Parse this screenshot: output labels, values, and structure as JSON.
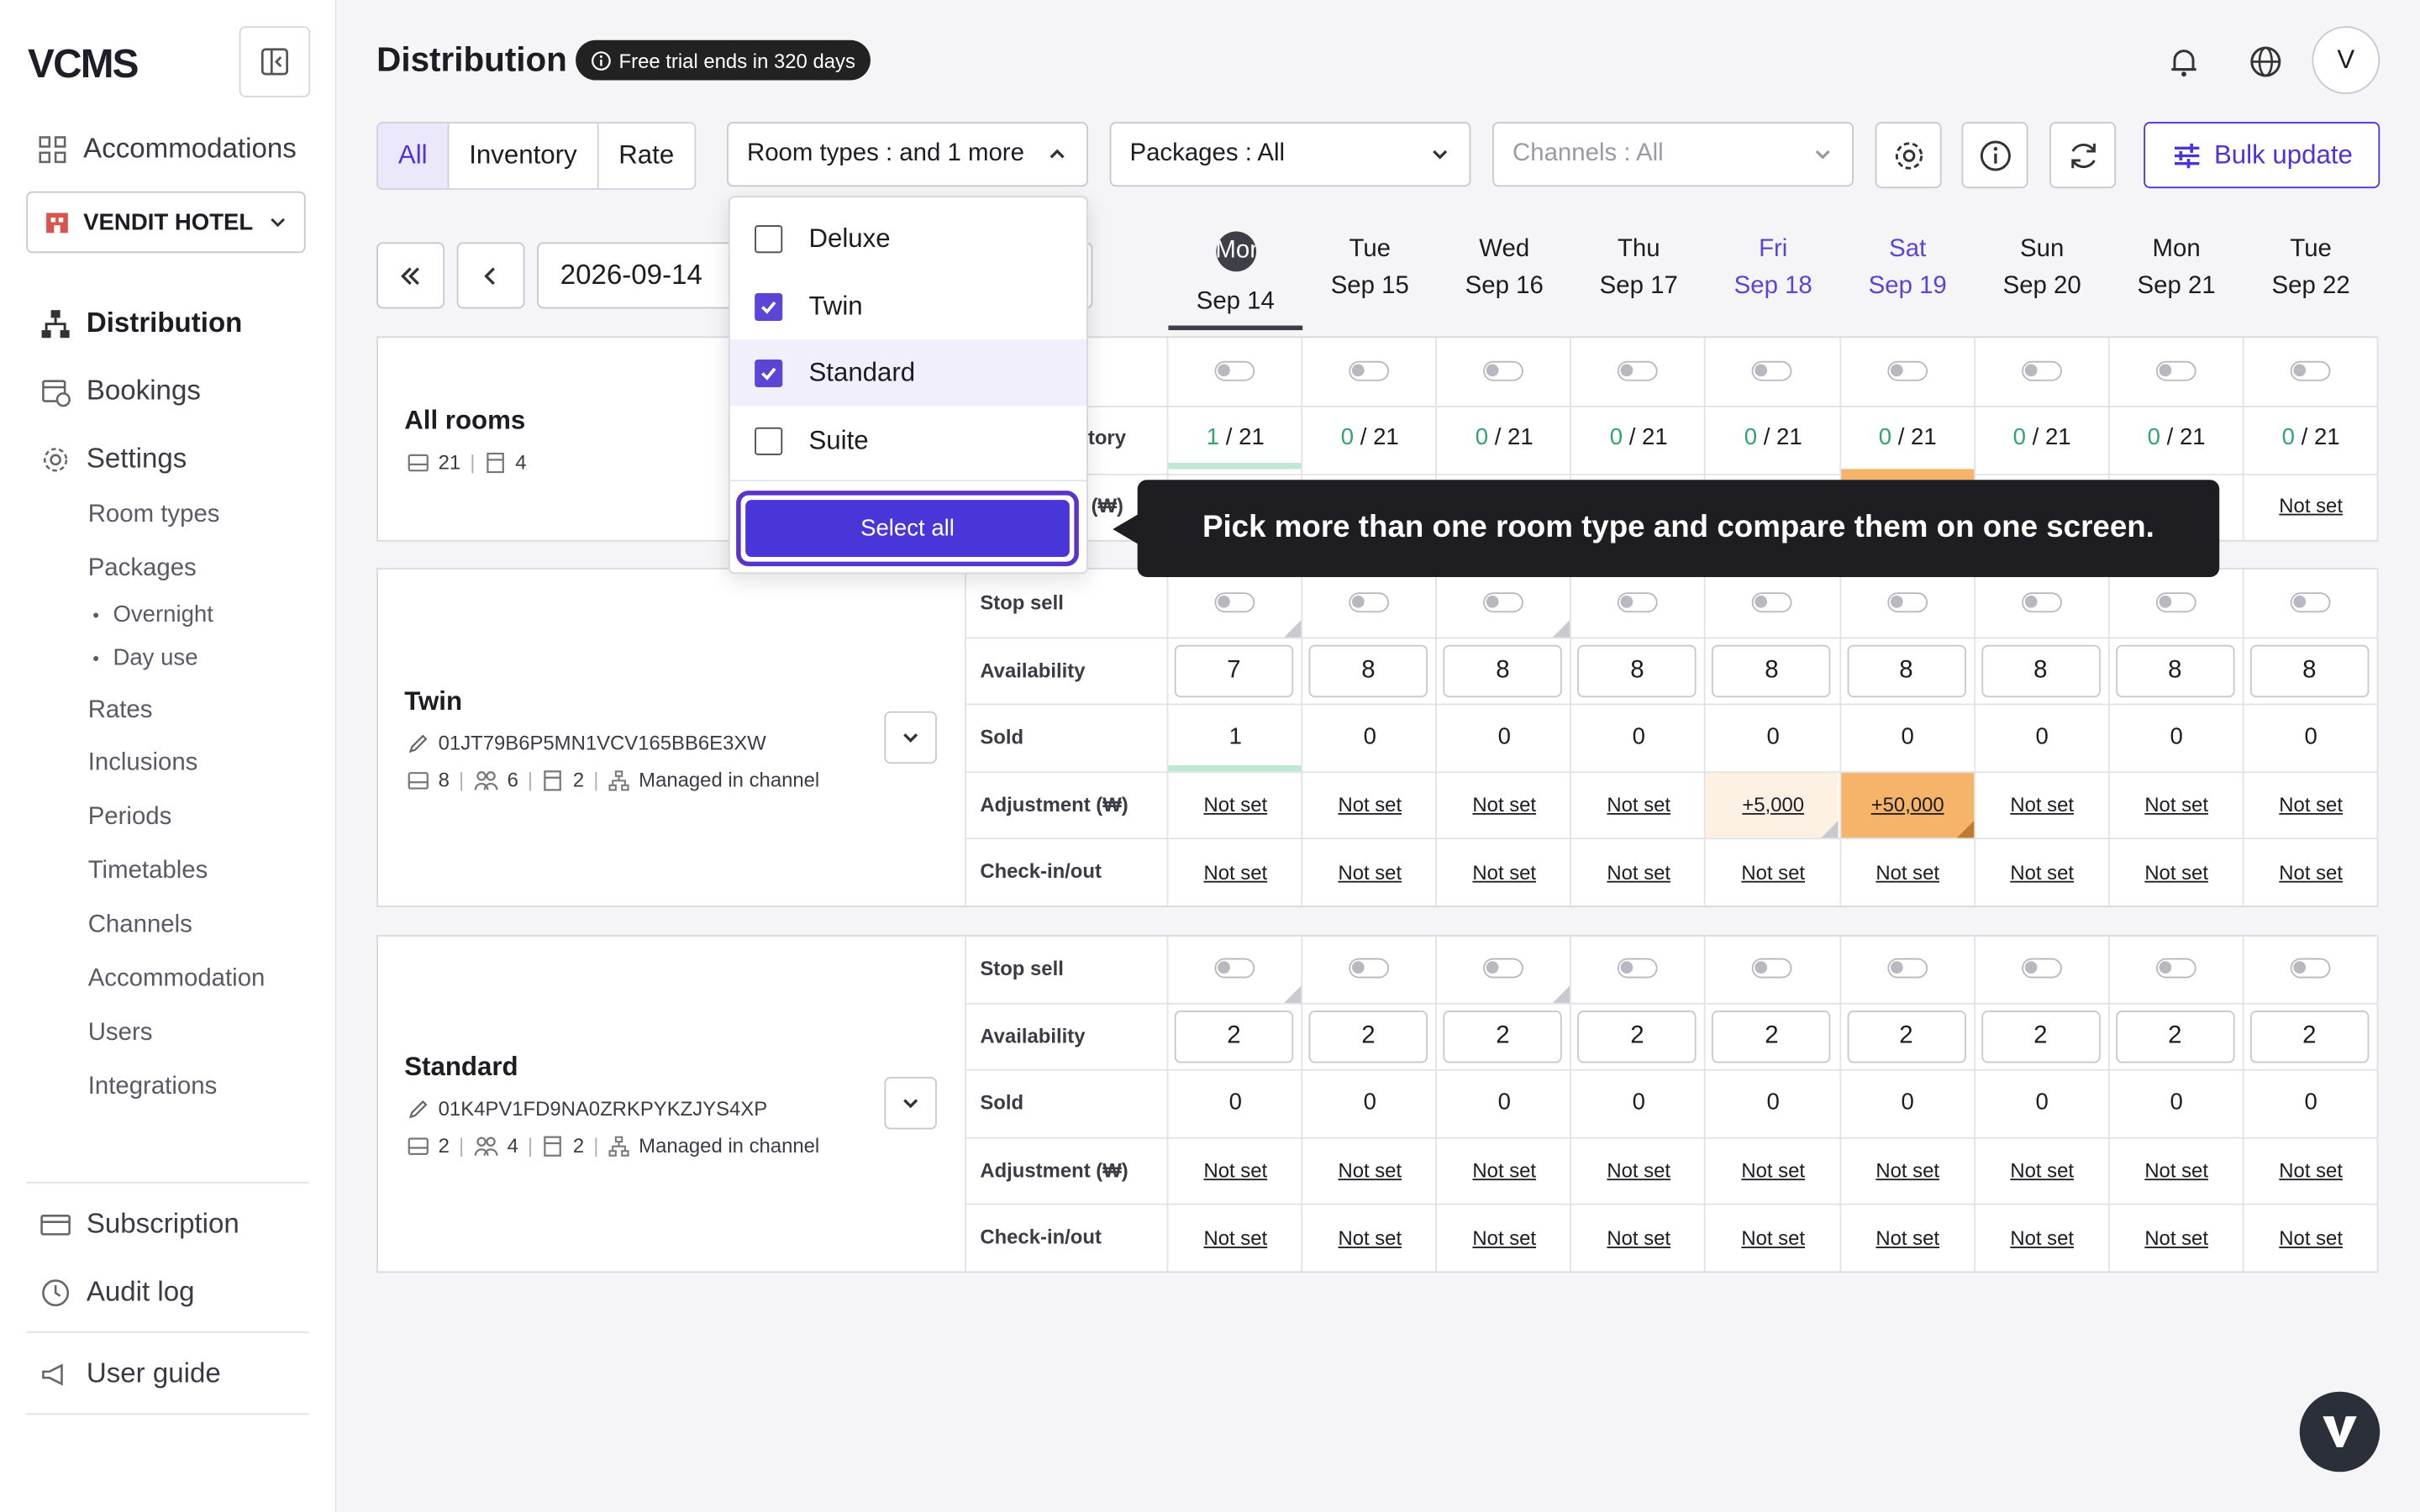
{
  "app": {
    "logo": "VCMS"
  },
  "sidebar": {
    "accommodations": "Accommodations",
    "hotel": "VENDIT HOTEL",
    "distribution": "Distribution",
    "bookings": "Bookings",
    "settings": "Settings",
    "settings_items": [
      "Room types",
      "Packages",
      "Rates",
      "Inclusions",
      "Periods",
      "Timetables",
      "Channels",
      "Accommodation",
      "Users",
      "Integrations"
    ],
    "packages_items": [
      "Overnight",
      "Day use"
    ],
    "subscription": "Subscription",
    "audit_log": "Audit log",
    "user_guide": "User guide"
  },
  "header": {
    "title": "Distribution",
    "trial": "Free trial ends in 320 days",
    "avatar": "V"
  },
  "toolbar": {
    "tabs": [
      "All",
      "Inventory",
      "Rate"
    ],
    "room_types": "Room types :  and 1 more",
    "packages": "Packages : All",
    "channels": "Channels : All",
    "bulk_update": "Bulk update",
    "date": "2026-09-14"
  },
  "dropdown": {
    "options": [
      {
        "label": "Deluxe",
        "checked": false
      },
      {
        "label": "Twin",
        "checked": true
      },
      {
        "label": "Standard",
        "checked": true
      },
      {
        "label": "Suite",
        "checked": false
      }
    ],
    "select_all": "Select all"
  },
  "tooltip": "Pick more than one room type and compare them on one screen.",
  "days": [
    {
      "dow": "Mon",
      "date": "Sep 14"
    },
    {
      "dow": "Tue",
      "date": "Sep 15"
    },
    {
      "dow": "Wed",
      "date": "Sep 16"
    },
    {
      "dow": "Thu",
      "date": "Sep 17"
    },
    {
      "dow": "Fri",
      "date": "Sep 18"
    },
    {
      "dow": "Sat",
      "date": "Sep 19"
    },
    {
      "dow": "Sun",
      "date": "Sep 20"
    },
    {
      "dow": "Mon",
      "date": "Sep 21"
    },
    {
      "dow": "Tue",
      "date": "Sep 22"
    }
  ],
  "all_rooms": {
    "name": "All rooms",
    "rooms": "21",
    "types": "4",
    "inventory_label": "tory",
    "adjustment_label": "(₩)",
    "inventory_sold": [
      "1",
      "0",
      "0",
      "0",
      "0",
      "0",
      "0",
      "0",
      "0"
    ],
    "inventory_total": "21",
    "last_adjustment": "Not set"
  },
  "rooms": [
    {
      "name": "Twin",
      "id": "01JT79B6P5MN1VCV165BB6E3XW",
      "rooms": "8",
      "guests": "6",
      "beds": "2",
      "managed": "Managed in channel",
      "availability": [
        "7",
        "8",
        "8",
        "8",
        "8",
        "8",
        "8",
        "8",
        "8"
      ],
      "sold": [
        "1",
        "0",
        "0",
        "0",
        "0",
        "0",
        "0",
        "0",
        "0"
      ],
      "adjustment": [
        "Not set",
        "Not set",
        "Not set",
        "Not set",
        "+5,000",
        "+50,000",
        "Not set",
        "Not set",
        "Not set"
      ],
      "checkinout": [
        "Not set",
        "Not set",
        "Not set",
        "Not set",
        "Not set",
        "Not set",
        "Not set",
        "Not set",
        "Not set"
      ]
    },
    {
      "name": "Standard",
      "id": "01K4PV1FD9NA0ZRKPYKZJYS4XP",
      "rooms": "2",
      "guests": "4",
      "beds": "2",
      "managed": "Managed in channel",
      "availability": [
        "2",
        "2",
        "2",
        "2",
        "2",
        "2",
        "2",
        "2",
        "2"
      ],
      "sold": [
        "0",
        "0",
        "0",
        "0",
        "0",
        "0",
        "0",
        "0",
        "0"
      ],
      "adjustment": [
        "Not set",
        "Not set",
        "Not set",
        "Not set",
        "Not set",
        "Not set",
        "Not set",
        "Not set",
        "Not set"
      ],
      "checkinout": [
        "Not set",
        "Not set",
        "Not set",
        "Not set",
        "Not set",
        "Not set",
        "Not set",
        "Not set",
        "Not set"
      ]
    }
  ],
  "row_labels": {
    "stop_sell": "Stop sell",
    "availability": "Availability",
    "sold": "Sold",
    "adjustment": "Adjustment (₩)",
    "checkinout": "Check-in/out"
  },
  "colors": {
    "accent": "#4a35d9",
    "weekend": "#5b45d6",
    "inventory_green": "#2fa56d",
    "adjust_light": "#fdf1e3",
    "adjust_strong": "#f6b46a"
  }
}
